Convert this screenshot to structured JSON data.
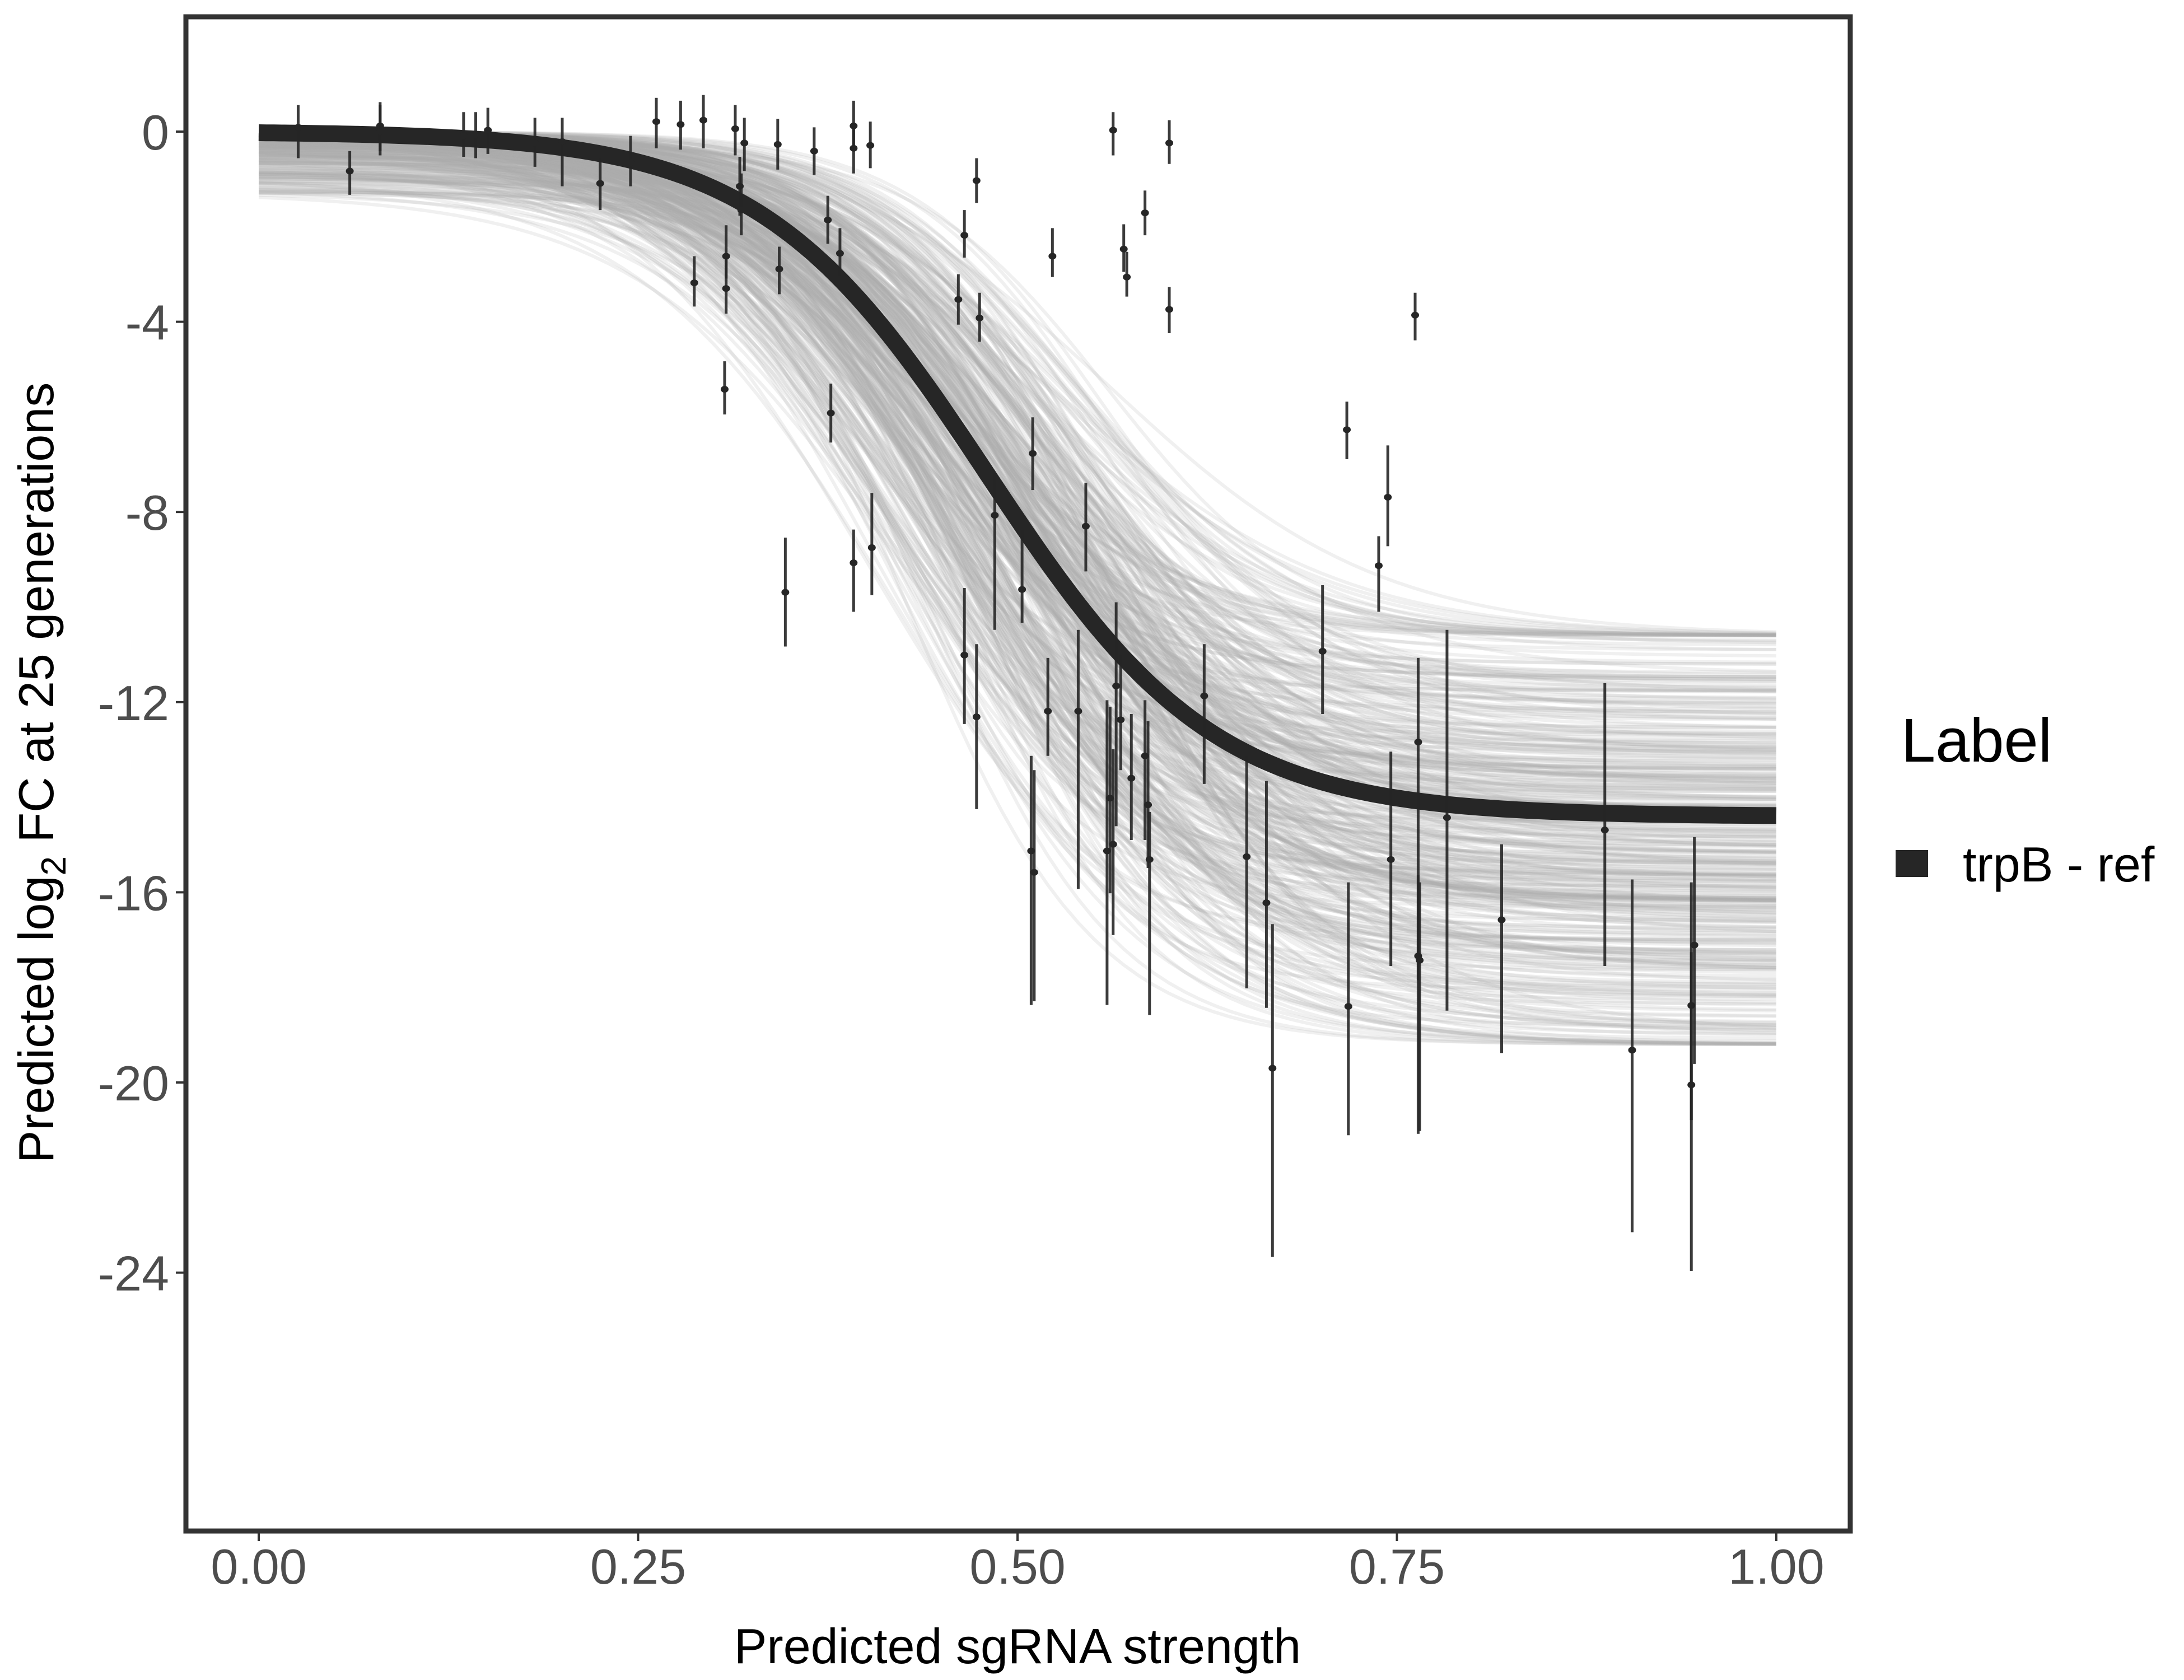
{
  "chart_data": {
    "type": "scatter",
    "title": "",
    "xlabel": "Predicted sgRNA strength",
    "ylabel_prefix": "Predicted  log",
    "ylabel_subscript": "2",
    "ylabel_suffix": " FC at 25 generations",
    "xlim": [
      -0.05,
      1.05
    ],
    "ylim": [
      -29.4,
      2.4
    ],
    "x_ticks": [
      0.0,
      0.25,
      0.5,
      0.75,
      1.0
    ],
    "x_tick_labels": [
      "0.00",
      "0.25",
      "0.50",
      "0.75",
      "1.00"
    ],
    "y_ticks": [
      0,
      -4,
      -8,
      -12,
      -16,
      -20,
      -24
    ],
    "y_tick_labels": [
      "0",
      "-4",
      "-8",
      "-12",
      "-16",
      "-20",
      "-24"
    ],
    "grid": false,
    "legend": {
      "title": "Label",
      "placement": "right",
      "entries": [
        {
          "label": "trpB - ref",
          "color": "#262626"
        }
      ]
    },
    "fit_curve": {
      "name": "trpB - ref",
      "model": "logistic",
      "params": {
        "upper": 0.0,
        "lower": -14.4,
        "midpoint": 0.48,
        "scale": 0.075
      },
      "color": "#262626"
    },
    "posterior_draws": {
      "count": 400,
      "color": "#aaaaaa",
      "midpoint_range": [
        0.4,
        0.56
      ],
      "lower_range": [
        -10.6,
        -19.2
      ],
      "upper_range": [
        0.0,
        -1.3
      ]
    },
    "points": [
      {
        "x": 0.026,
        "y": 0.09,
        "lo": -0.56,
        "hi": 0.56
      },
      {
        "x": 0.06,
        "y": -0.83,
        "lo": -1.33,
        "hi": -0.41
      },
      {
        "x": 0.08,
        "y": 0.12,
        "lo": -0.41,
        "hi": 0.62
      },
      {
        "x": 0.08,
        "y": 0.0,
        "lo": -0.5,
        "hi": 0.56
      },
      {
        "x": 0.135,
        "y": -0.09,
        "lo": -0.53,
        "hi": 0.41
      },
      {
        "x": 0.143,
        "y": -0.06,
        "lo": -0.56,
        "hi": 0.41
      },
      {
        "x": 0.151,
        "y": 0.03,
        "lo": -0.47,
        "hi": 0.5
      },
      {
        "x": 0.182,
        "y": -0.24,
        "lo": -0.74,
        "hi": 0.29
      },
      {
        "x": 0.2,
        "y": -0.21,
        "lo": -1.15,
        "hi": 0.29
      },
      {
        "x": 0.225,
        "y": -1.09,
        "lo": -1.65,
        "hi": -0.56
      },
      {
        "x": 0.245,
        "y": -0.65,
        "lo": -1.15,
        "hi": -0.09
      },
      {
        "x": 0.262,
        "y": 0.21,
        "lo": -0.35,
        "hi": 0.71
      },
      {
        "x": 0.278,
        "y": 0.15,
        "lo": -0.38,
        "hi": 0.65
      },
      {
        "x": 0.293,
        "y": 0.24,
        "lo": -0.35,
        "hi": 0.77
      },
      {
        "x": 0.287,
        "y": -3.18,
        "lo": -3.68,
        "hi": -2.62
      },
      {
        "x": 0.307,
        "y": -5.42,
        "lo": -5.95,
        "hi": -4.83
      },
      {
        "x": 0.308,
        "y": -3.3,
        "lo": -3.83,
        "hi": -2.68
      },
      {
        "x": 0.308,
        "y": -2.62,
        "lo": -3.09,
        "hi": -1.97
      },
      {
        "x": 0.314,
        "y": 0.06,
        "lo": -0.5,
        "hi": 0.56
      },
      {
        "x": 0.317,
        "y": -1.15,
        "lo": -1.77,
        "hi": -0.53
      },
      {
        "x": 0.318,
        "y": -1.65,
        "lo": -2.18,
        "hi": -0.88
      },
      {
        "x": 0.32,
        "y": -0.24,
        "lo": -0.83,
        "hi": 0.29
      },
      {
        "x": 0.342,
        "y": -0.27,
        "lo": -0.8,
        "hi": 0.27
      },
      {
        "x": 0.343,
        "y": -2.89,
        "lo": -3.42,
        "hi": -2.42
      },
      {
        "x": 0.347,
        "y": -9.69,
        "lo": -10.83,
        "hi": -8.54
      },
      {
        "x": 0.366,
        "y": -0.41,
        "lo": -0.91,
        "hi": 0.09
      },
      {
        "x": 0.375,
        "y": -1.86,
        "lo": -2.36,
        "hi": -1.35
      },
      {
        "x": 0.377,
        "y": -5.92,
        "lo": -6.54,
        "hi": -5.3
      },
      {
        "x": 0.383,
        "y": -2.56,
        "lo": -3.03,
        "hi": -2.03
      },
      {
        "x": 0.392,
        "y": 0.12,
        "lo": -0.41,
        "hi": 0.65
      },
      {
        "x": 0.392,
        "y": -0.35,
        "lo": -0.88,
        "hi": 0.18
      },
      {
        "x": 0.392,
        "y": -9.07,
        "lo": -10.1,
        "hi": -8.37
      },
      {
        "x": 0.403,
        "y": -0.29,
        "lo": -0.77,
        "hi": 0.21
      },
      {
        "x": 0.404,
        "y": -8.75,
        "lo": -9.75,
        "hi": -7.6
      },
      {
        "x": 0.461,
        "y": -3.53,
        "lo": -4.06,
        "hi": -3.0
      },
      {
        "x": 0.465,
        "y": -2.18,
        "lo": -2.65,
        "hi": -1.65
      },
      {
        "x": 0.465,
        "y": -11.01,
        "lo": -12.46,
        "hi": -9.6
      },
      {
        "x": 0.473,
        "y": -1.03,
        "lo": -1.5,
        "hi": -0.56
      },
      {
        "x": 0.475,
        "y": -3.92,
        "lo": -4.42,
        "hi": -3.39
      },
      {
        "x": 0.473,
        "y": -12.31,
        "lo": -14.25,
        "hi": -10.78
      },
      {
        "x": 0.485,
        "y": -8.07,
        "lo": -10.48,
        "hi": -7.19
      },
      {
        "x": 0.503,
        "y": -9.63,
        "lo": -10.33,
        "hi": -8.37
      },
      {
        "x": 0.509,
        "y": -15.13,
        "lo": -18.37,
        "hi": -13.13
      },
      {
        "x": 0.51,
        "y": -6.77,
        "lo": -7.54,
        "hi": -6.01
      },
      {
        "x": 0.511,
        "y": -15.58,
        "lo": -18.29,
        "hi": -13.43
      },
      {
        "x": 0.52,
        "y": -12.19,
        "lo": -13.13,
        "hi": -11.07
      },
      {
        "x": 0.523,
        "y": -2.62,
        "lo": -3.06,
        "hi": -2.03
      },
      {
        "x": 0.54,
        "y": -12.19,
        "lo": -15.93,
        "hi": -10.48
      },
      {
        "x": 0.545,
        "y": -8.3,
        "lo": -9.25,
        "hi": -7.39
      },
      {
        "x": 0.559,
        "y": -15.13,
        "lo": -18.37,
        "hi": -11.96
      },
      {
        "x": 0.561,
        "y": -14.02,
        "lo": -16.02,
        "hi": -12.1
      },
      {
        "x": 0.563,
        "y": 0.03,
        "lo": -0.5,
        "hi": 0.41
      },
      {
        "x": 0.563,
        "y": -14.99,
        "lo": -16.9,
        "hi": -12.99
      },
      {
        "x": 0.565,
        "y": -11.66,
        "lo": -14.61,
        "hi": -9.9
      },
      {
        "x": 0.568,
        "y": -12.37,
        "lo": -13.43,
        "hi": -11.01
      },
      {
        "x": 0.57,
        "y": -2.47,
        "lo": -2.95,
        "hi": -1.95
      },
      {
        "x": 0.572,
        "y": -3.06,
        "lo": -3.47,
        "hi": -2.53
      },
      {
        "x": 0.575,
        "y": -13.6,
        "lo": -14.9,
        "hi": -12.25
      },
      {
        "x": 0.584,
        "y": -1.71,
        "lo": -2.18,
        "hi": -1.24
      },
      {
        "x": 0.584,
        "y": -13.13,
        "lo": -14.9,
        "hi": -11.96
      },
      {
        "x": 0.586,
        "y": -14.16,
        "lo": -15.49,
        "hi": -12.4
      },
      {
        "x": 0.587,
        "y": -15.31,
        "lo": -18.58,
        "hi": -14.31
      },
      {
        "x": 0.6,
        "y": -0.24,
        "lo": -0.68,
        "hi": 0.24
      },
      {
        "x": 0.6,
        "y": -3.74,
        "lo": -4.24,
        "hi": -3.27
      },
      {
        "x": 0.623,
        "y": -11.87,
        "lo": -13.72,
        "hi": -10.78
      },
      {
        "x": 0.651,
        "y": -15.25,
        "lo": -18.02,
        "hi": -13.13
      },
      {
        "x": 0.664,
        "y": -16.22,
        "lo": -18.43,
        "hi": -13.66
      },
      {
        "x": 0.668,
        "y": -19.7,
        "lo": -23.67,
        "hi": -16.67
      },
      {
        "x": 0.701,
        "y": -10.93,
        "lo": -12.25,
        "hi": -9.54
      },
      {
        "x": 0.717,
        "y": -6.27,
        "lo": -6.89,
        "hi": -5.68
      },
      {
        "x": 0.718,
        "y": -18.4,
        "lo": -21.11,
        "hi": -15.79
      },
      {
        "x": 0.738,
        "y": -9.13,
        "lo": -10.1,
        "hi": -8.51
      },
      {
        "x": 0.744,
        "y": -7.69,
        "lo": -8.72,
        "hi": -6.6
      },
      {
        "x": 0.746,
        "y": -15.31,
        "lo": -17.55,
        "hi": -13.04
      },
      {
        "x": 0.762,
        "y": -3.86,
        "lo": -4.39,
        "hi": -3.39
      },
      {
        "x": 0.764,
        "y": -12.84,
        "lo": -17.85,
        "hi": -11.07
      },
      {
        "x": 0.764,
        "y": -17.34,
        "lo": -21.08,
        "hi": -15.64
      },
      {
        "x": 0.765,
        "y": -17.43,
        "lo": -21.02,
        "hi": -15.79
      },
      {
        "x": 0.783,
        "y": -14.43,
        "lo": -18.49,
        "hi": -10.48
      },
      {
        "x": 0.819,
        "y": -16.58,
        "lo": -19.38,
        "hi": -14.99
      },
      {
        "x": 0.887,
        "y": -14.69,
        "lo": -17.55,
        "hi": -11.6
      },
      {
        "x": 0.905,
        "y": -19.32,
        "lo": -23.15,
        "hi": -15.73
      },
      {
        "x": 0.944,
        "y": -18.38,
        "lo": -20.79,
        "hi": -15.79
      },
      {
        "x": 0.944,
        "y": -20.05,
        "lo": -23.97,
        "hi": -17.26
      },
      {
        "x": 0.946,
        "y": -17.11,
        "lo": -19.61,
        "hi": -14.84
      }
    ]
  }
}
